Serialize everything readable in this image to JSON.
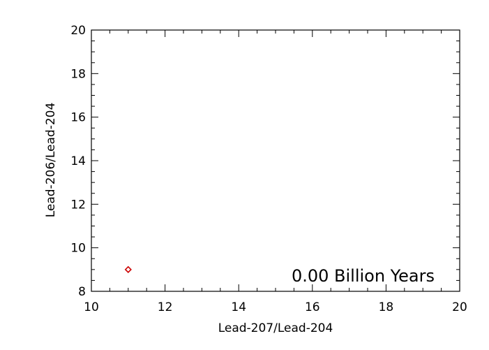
{
  "chart_data": {
    "type": "scatter",
    "title": "",
    "xlabel": "Lead-207/Lead-204",
    "ylabel": "Lead-206/Lead-204",
    "xlim": [
      10,
      20
    ],
    "ylim": [
      8,
      20
    ],
    "xticks": [
      "10",
      "12",
      "14",
      "16",
      "18",
      "20"
    ],
    "yticks": [
      "8",
      "10",
      "12",
      "14",
      "16",
      "18",
      "20"
    ],
    "grid": false,
    "legend": "none",
    "series": [
      {
        "marker": "diamond-open",
        "color": "#cc0000",
        "points": [
          {
            "x": 11.0,
            "y": 9.0
          }
        ]
      }
    ],
    "annotation": "0.00 Billion Years"
  }
}
